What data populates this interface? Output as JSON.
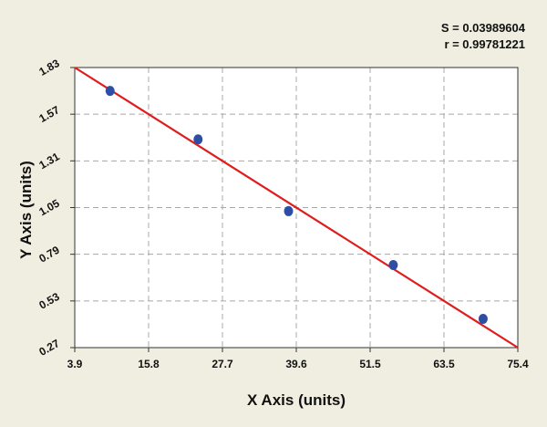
{
  "stats": {
    "s_text": "S = 0.03989604",
    "r_text": "r = 0.99781221"
  },
  "colors": {
    "background": "#efeee0",
    "plot_area": "#ffffff",
    "grid": "#a8a8a8",
    "fit_line": "#e01c1c",
    "points": "#2e4ea6"
  },
  "chart_data": {
    "type": "scatter",
    "title": "",
    "xlabel": "X Axis (units)",
    "ylabel": "Y Axis (units)",
    "xlim": [
      3.9,
      75.4
    ],
    "ylim": [
      0.27,
      1.83
    ],
    "x_ticks": [
      "3.9",
      "15.8",
      "27.7",
      "39.6",
      "51.5",
      "63.5",
      "75.4"
    ],
    "y_ticks": [
      "1.83",
      "1.57",
      "1.31",
      "1.05",
      "0.79",
      "0.53",
      "0.27"
    ],
    "grid": true,
    "legend": "none",
    "series": [
      {
        "type": "scatter",
        "x": [
          9.6,
          23.8,
          38.4,
          55.3,
          69.8
        ],
        "y": [
          1.7,
          1.43,
          1.03,
          0.73,
          0.43
        ]
      }
    ],
    "fit_line": {
      "x": [
        3.9,
        75.4
      ],
      "y": [
        1.83,
        0.27
      ]
    }
  }
}
